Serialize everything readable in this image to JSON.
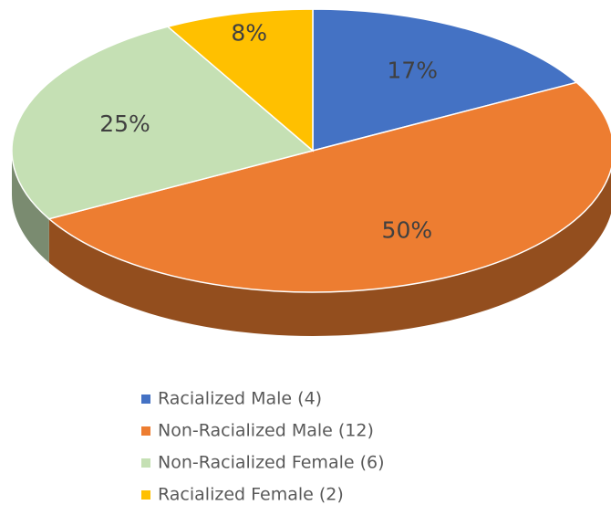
{
  "chart_data": {
    "type": "pie",
    "categories": [
      "Racialized Male (4)",
      "Non-Racialized Male (12)",
      "Non-Racialized Female (6)",
      "Racialized Female (2)"
    ],
    "values": [
      17,
      50,
      25,
      8
    ],
    "value_labels": [
      "17%",
      "50%",
      "25%",
      "8%"
    ],
    "colors": [
      "#4472c4",
      "#ed7d31",
      "#c5e0b4",
      "#ffc000"
    ],
    "legend": "bottom"
  }
}
